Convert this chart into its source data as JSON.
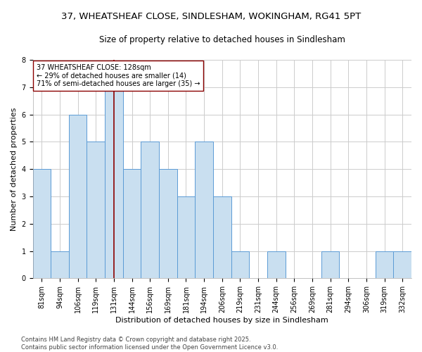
{
  "title": "37, WHEATSHEAF CLOSE, SINDLESHAM, WOKINGHAM, RG41 5PT",
  "subtitle": "Size of property relative to detached houses in Sindlesham",
  "xlabel": "Distribution of detached houses by size in Sindlesham",
  "ylabel": "Number of detached properties",
  "categories": [
    "81sqm",
    "94sqm",
    "106sqm",
    "119sqm",
    "131sqm",
    "144sqm",
    "156sqm",
    "169sqm",
    "181sqm",
    "194sqm",
    "206sqm",
    "219sqm",
    "231sqm",
    "244sqm",
    "256sqm",
    "269sqm",
    "281sqm",
    "294sqm",
    "306sqm",
    "319sqm",
    "332sqm"
  ],
  "values": [
    4,
    1,
    6,
    5,
    7,
    4,
    5,
    4,
    3,
    5,
    3,
    1,
    0,
    1,
    0,
    0,
    1,
    0,
    0,
    1,
    1
  ],
  "bar_color": "#c9dff0",
  "bar_edge_color": "#5b9bd5",
  "vline_x_index": 4,
  "vline_color": "#8b0000",
  "annotation_line1": "37 WHEATSHEAF CLOSE: 128sqm",
  "annotation_line2": "← 29% of detached houses are smaller (14)",
  "annotation_line3": "71% of semi-detached houses are larger (35) →",
  "annotation_box_edge": "#8b0000",
  "ylim": [
    0,
    8
  ],
  "yticks": [
    0,
    1,
    2,
    3,
    4,
    5,
    6,
    7,
    8
  ],
  "background_color": "#ffffff",
  "grid_color": "#cccccc",
  "footer_text": "Contains HM Land Registry data © Crown copyright and database right 2025.\nContains public sector information licensed under the Open Government Licence v3.0.",
  "title_fontsize": 9.5,
  "subtitle_fontsize": 8.5,
  "xlabel_fontsize": 8,
  "ylabel_fontsize": 8,
  "tick_fontsize": 7,
  "annotation_fontsize": 7,
  "footer_fontsize": 6
}
